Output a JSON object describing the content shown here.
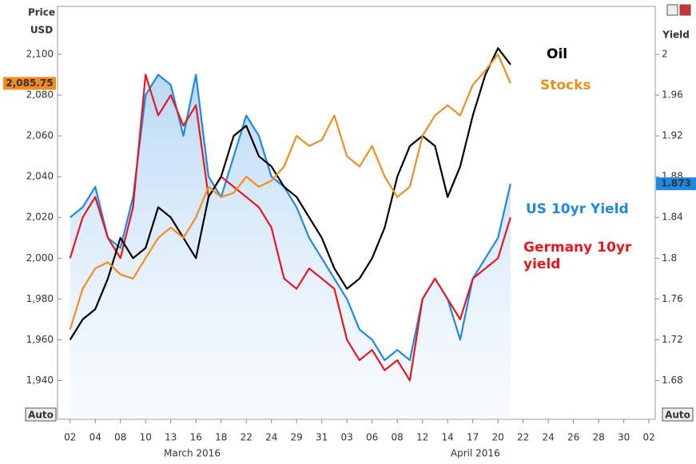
{
  "chart_data": {
    "type": "line",
    "ylabel_lines": [
      "Price",
      "USD"
    ],
    "y2label": "Yield",
    "auto_button": "Auto",
    "x": [
      0,
      1,
      2,
      3,
      4,
      5,
      6,
      7,
      8,
      9,
      10,
      11,
      12,
      13,
      14,
      15,
      16,
      17,
      18,
      19,
      20,
      21,
      22,
      23,
      24,
      25,
      26,
      27,
      28,
      29,
      30,
      31,
      32,
      33,
      34,
      35
    ],
    "xlim": [
      -1,
      46.5
    ],
    "xticks": [
      {
        "value": 0,
        "label": "02"
      },
      {
        "value": 2,
        "label": "04"
      },
      {
        "value": 4,
        "label": "08"
      },
      {
        "value": 6,
        "label": "10"
      },
      {
        "value": 8,
        "label": "13"
      },
      {
        "value": 10,
        "label": "16"
      },
      {
        "value": 12,
        "label": "18"
      },
      {
        "value": 14,
        "label": "22"
      },
      {
        "value": 16,
        "label": "24"
      },
      {
        "value": 18,
        "label": "29"
      },
      {
        "value": 20,
        "label": "31"
      },
      {
        "value": 22,
        "label": "03"
      },
      {
        "value": 24,
        "label": "06"
      },
      {
        "value": 26,
        "label": "08"
      },
      {
        "value": 28,
        "label": "12"
      },
      {
        "value": 30,
        "label": "14"
      },
      {
        "value": 32,
        "label": "17"
      },
      {
        "value": 34,
        "label": "20"
      },
      {
        "value": 36,
        "label": "22"
      },
      {
        "value": 38,
        "label": "24"
      },
      {
        "value": 40,
        "label": "26"
      },
      {
        "value": 42,
        "label": "28"
      },
      {
        "value": 44,
        "label": "30"
      },
      {
        "value": 46,
        "label": "02"
      }
    ],
    "month_labels": [
      {
        "value": 9.7,
        "label": "March 2016"
      },
      {
        "value": 32.2,
        "label": "April 2016"
      }
    ],
    "ylim": [
      1921,
      2123.5
    ],
    "yticks": [
      {
        "value": 1940,
        "label": "1,940"
      },
      {
        "value": 1960,
        "label": "1,960"
      },
      {
        "value": 1980,
        "label": "1,980"
      },
      {
        "value": 2000,
        "label": "2,000"
      },
      {
        "value": 2020,
        "label": "2,020"
      },
      {
        "value": 2040,
        "label": "2,040"
      },
      {
        "value": 2060,
        "label": "2,060"
      },
      {
        "value": 2080,
        "label": "2,080"
      },
      {
        "value": 2100,
        "label": "2,100"
      }
    ],
    "y2lim": [
      1.642,
      2.047
    ],
    "y2ticks": [
      1.68,
      1.72,
      1.76,
      1.8,
      1.84,
      1.88,
      1.92,
      1.96,
      2
    ],
    "series": [
      {
        "name": "US 10yr Yield",
        "color": "#1e88e5",
        "axis": "y2",
        "area": true,
        "values": [
          1.84,
          1.85,
          1.87,
          1.82,
          1.81,
          1.86,
          1.96,
          1.98,
          1.97,
          1.92,
          1.98,
          1.88,
          1.86,
          1.9,
          1.94,
          1.92,
          1.88,
          1.87,
          1.85,
          1.82,
          1.8,
          1.78,
          1.76,
          1.73,
          1.72,
          1.7,
          1.71,
          1.7,
          1.76,
          1.78,
          1.76,
          1.72,
          1.78,
          1.8,
          1.82,
          1.873
        ],
        "last_label": "1.873"
      },
      {
        "name": "Germany 10yr yield",
        "color": "#e8171c",
        "axis": "y2",
        "values": [
          1.8,
          1.84,
          1.86,
          1.82,
          1.8,
          1.85,
          1.98,
          1.94,
          1.96,
          1.93,
          1.95,
          1.86,
          1.88,
          1.87,
          1.86,
          1.85,
          1.83,
          1.78,
          1.77,
          1.79,
          1.78,
          1.77,
          1.72,
          1.7,
          1.71,
          1.69,
          1.7,
          1.68,
          1.76,
          1.78,
          1.76,
          1.74,
          1.78,
          1.79,
          1.8,
          1.84
        ]
      },
      {
        "name": "Oil",
        "color": "#000000",
        "axis": "y",
        "values": [
          1960,
          1970,
          1975,
          1990,
          2010,
          2000,
          2005,
          2025,
          2020,
          2010,
          2000,
          2030,
          2040,
          2060,
          2065,
          2050,
          2045,
          2035,
          2030,
          2020,
          2010,
          1995,
          1985,
          1990,
          2000,
          2015,
          2040,
          2055,
          2060,
          2055,
          2030,
          2045,
          2070,
          2090,
          2103,
          2095
        ]
      },
      {
        "name": "Stocks",
        "color": "#f28c1e",
        "axis": "y",
        "values": [
          1965,
          1985,
          1995,
          1998,
          1992,
          1990,
          2000,
          2010,
          2015,
          2010,
          2020,
          2035,
          2030,
          2032,
          2040,
          2035,
          2038,
          2045,
          2060,
          2055,
          2058,
          2070,
          2050,
          2045,
          2055,
          2040,
          2030,
          2035,
          2060,
          2070,
          2075,
          2070,
          2085,
          2092,
          2100,
          2085.75
        ],
        "last_label": "2,085.75"
      }
    ]
  }
}
